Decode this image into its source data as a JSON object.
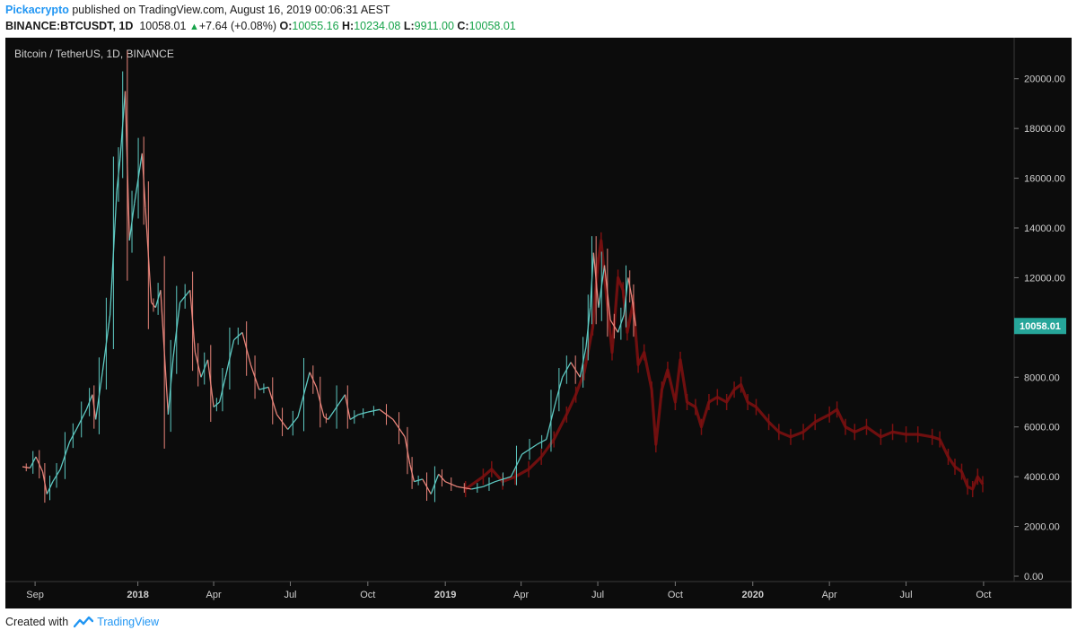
{
  "header": {
    "author": "Pickacrypto",
    "published_text": "published on TradingView.com, August 16, 2019 00:06:31 AEST"
  },
  "quote": {
    "symbol": "BINANCE:BTCUSDT, 1D",
    "last": "10058.01",
    "change": "+7.64 (+0.08%)",
    "open_label": "O:",
    "open": "10055.16",
    "high_label": "H:",
    "high": "10234.08",
    "low_label": "L:",
    "low": "9911.00",
    "close_label": "C:",
    "close": "10058.01",
    "direction": "up-arrow-icon"
  },
  "chart_title": "Bitcoin / TetherUS, 1D, BINANCE",
  "price_badge": "10058.01",
  "footer": {
    "created_with": "Created with",
    "brand": "TradingView",
    "icon": "tradingview-logo-icon"
  },
  "colors": {
    "background": "#0c0c0c",
    "up_candle": "#5ec9c2",
    "down_candle": "#e8847a",
    "projection": "#7a1010",
    "badge": "#26a69a",
    "author": "#2196f3",
    "change_up": "#17a34a"
  },
  "chart_data": {
    "type": "line",
    "title": "Bitcoin / TetherUS, 1D, BINANCE",
    "ylim": [
      0,
      21000
    ],
    "xlim": [
      "2017-08-01",
      "2020-11-01"
    ],
    "y_ticks": [
      "0.00",
      "2000.00",
      "4000.00",
      "6000.00",
      "8000.00",
      "10000.00",
      "12000.00",
      "14000.00",
      "16000.00",
      "18000.00",
      "20000.00"
    ],
    "x_ticks": [
      {
        "label": "Sep",
        "date": "2017-09-01"
      },
      {
        "label": "2018",
        "date": "2018-01-01"
      },
      {
        "label": "Apr",
        "date": "2018-04-01"
      },
      {
        "label": "Jul",
        "date": "2018-07-01"
      },
      {
        "label": "Oct",
        "date": "2018-10-01"
      },
      {
        "label": "2019",
        "date": "2019-01-01"
      },
      {
        "label": "Apr",
        "date": "2019-04-01"
      },
      {
        "label": "Jul",
        "date": "2019-07-01"
      },
      {
        "label": "Oct",
        "date": "2019-10-01"
      },
      {
        "label": "2020",
        "date": "2020-01-01"
      },
      {
        "label": "Apr",
        "date": "2020-04-01"
      },
      {
        "label": "Jul",
        "date": "2020-07-01"
      },
      {
        "label": "Oct",
        "date": "2020-10-01"
      }
    ],
    "series": [
      {
        "name": "BTCUSDT",
        "values": [
          [
            "2017-08-17",
            4400
          ],
          [
            "2017-08-26",
            4350
          ],
          [
            "2017-09-02",
            4800
          ],
          [
            "2017-09-10",
            4200
          ],
          [
            "2017-09-15",
            3300
          ],
          [
            "2017-09-22",
            3800
          ],
          [
            "2017-10-01",
            4300
          ],
          [
            "2017-10-12",
            5400
          ],
          [
            "2017-10-20",
            5900
          ],
          [
            "2017-11-01",
            6700
          ],
          [
            "2017-11-08",
            7300
          ],
          [
            "2017-11-12",
            6300
          ],
          [
            "2017-11-20",
            8200
          ],
          [
            "2017-11-29",
            10500
          ],
          [
            "2017-12-07",
            15500
          ],
          [
            "2017-12-11",
            16800
          ],
          [
            "2017-12-17",
            19500
          ],
          [
            "2017-12-22",
            13500
          ],
          [
            "2017-12-28",
            15000
          ],
          [
            "2018-01-06",
            17000
          ],
          [
            "2018-01-10",
            14800
          ],
          [
            "2018-01-17",
            11000
          ],
          [
            "2018-01-22",
            10800
          ],
          [
            "2018-01-28",
            11500
          ],
          [
            "2018-02-06",
            6500
          ],
          [
            "2018-02-12",
            8800
          ],
          [
            "2018-02-20",
            11000
          ],
          [
            "2018-03-04",
            11500
          ],
          [
            "2018-03-10",
            9000
          ],
          [
            "2018-03-17",
            8000
          ],
          [
            "2018-03-25",
            8700
          ],
          [
            "2018-04-01",
            6800
          ],
          [
            "2018-04-08",
            7000
          ],
          [
            "2018-04-15",
            8000
          ],
          [
            "2018-04-25",
            9500
          ],
          [
            "2018-05-05",
            9800
          ],
          [
            "2018-05-15",
            8500
          ],
          [
            "2018-05-25",
            7500
          ],
          [
            "2018-06-05",
            7600
          ],
          [
            "2018-06-15",
            6500
          ],
          [
            "2018-06-28",
            5900
          ],
          [
            "2018-07-10",
            6400
          ],
          [
            "2018-07-24",
            8200
          ],
          [
            "2018-08-01",
            7600
          ],
          [
            "2018-08-10",
            6400
          ],
          [
            "2018-08-15",
            6300
          ],
          [
            "2018-09-04",
            7300
          ],
          [
            "2018-09-10",
            6300
          ],
          [
            "2018-09-20",
            6500
          ],
          [
            "2018-10-01",
            6600
          ],
          [
            "2018-10-15",
            6700
          ],
          [
            "2018-10-31",
            6300
          ],
          [
            "2018-11-14",
            5600
          ],
          [
            "2018-11-20",
            4500
          ],
          [
            "2018-11-25",
            3800
          ],
          [
            "2018-12-05",
            3900
          ],
          [
            "2018-12-15",
            3300
          ],
          [
            "2018-12-24",
            4100
          ],
          [
            "2019-01-01",
            3800
          ],
          [
            "2019-01-15",
            3600
          ],
          [
            "2019-02-01",
            3500
          ],
          [
            "2019-02-15",
            3600
          ],
          [
            "2019-03-01",
            3800
          ],
          [
            "2019-03-20",
            4000
          ],
          [
            "2019-04-02",
            4900
          ],
          [
            "2019-04-20",
            5300
          ],
          [
            "2019-05-01",
            5500
          ],
          [
            "2019-05-12",
            7000
          ],
          [
            "2019-05-20",
            8000
          ],
          [
            "2019-05-30",
            8600
          ],
          [
            "2019-06-10",
            8000
          ],
          [
            "2019-06-17",
            9200
          ],
          [
            "2019-06-22",
            10800
          ],
          [
            "2019-06-26",
            13000
          ],
          [
            "2019-07-02",
            10800
          ],
          [
            "2019-07-09",
            12500
          ],
          [
            "2019-07-16",
            10300
          ],
          [
            "2019-07-25",
            9800
          ],
          [
            "2019-08-01",
            10500
          ],
          [
            "2019-08-06",
            12000
          ],
          [
            "2019-08-10",
            11300
          ],
          [
            "2019-08-15",
            10058
          ]
        ]
      },
      {
        "name": "projection",
        "values": [
          [
            "2019-01-25",
            3500
          ],
          [
            "2019-02-15",
            4000
          ],
          [
            "2019-02-25",
            4300
          ],
          [
            "2019-03-10",
            3800
          ],
          [
            "2019-03-25",
            4000
          ],
          [
            "2019-04-10",
            4300
          ],
          [
            "2019-04-25",
            4800
          ],
          [
            "2019-05-10",
            5500
          ],
          [
            "2019-05-25",
            6500
          ],
          [
            "2019-06-05",
            7300
          ],
          [
            "2019-06-15",
            8200
          ],
          [
            "2019-06-25",
            10000
          ],
          [
            "2019-07-01",
            12500
          ],
          [
            "2019-07-05",
            13500
          ],
          [
            "2019-07-12",
            11000
          ],
          [
            "2019-07-18",
            9000
          ],
          [
            "2019-07-25",
            12000
          ],
          [
            "2019-07-31",
            11500
          ],
          [
            "2019-08-05",
            9800
          ],
          [
            "2019-08-12",
            11000
          ],
          [
            "2019-08-18",
            8500
          ],
          [
            "2019-08-25",
            9000
          ],
          [
            "2019-09-03",
            7500
          ],
          [
            "2019-09-08",
            5300
          ],
          [
            "2019-09-15",
            7500
          ],
          [
            "2019-09-22",
            8300
          ],
          [
            "2019-10-01",
            7000
          ],
          [
            "2019-10-07",
            8700
          ],
          [
            "2019-10-15",
            7000
          ],
          [
            "2019-10-25",
            6800
          ],
          [
            "2019-11-01",
            6000
          ],
          [
            "2019-11-10",
            7000
          ],
          [
            "2019-11-20",
            7200
          ],
          [
            "2019-12-01",
            7000
          ],
          [
            "2019-12-10",
            7500
          ],
          [
            "2019-12-18",
            7700
          ],
          [
            "2019-12-26",
            7000
          ],
          [
            "2020-01-05",
            6800
          ],
          [
            "2020-01-20",
            6200
          ],
          [
            "2020-02-01",
            5800
          ],
          [
            "2020-02-15",
            5600
          ],
          [
            "2020-03-01",
            5800
          ],
          [
            "2020-03-15",
            6200
          ],
          [
            "2020-04-01",
            6500
          ],
          [
            "2020-04-10",
            6700
          ],
          [
            "2020-04-20",
            6000
          ],
          [
            "2020-05-01",
            5800
          ],
          [
            "2020-05-15",
            6000
          ],
          [
            "2020-06-01",
            5600
          ],
          [
            "2020-06-15",
            5800
          ],
          [
            "2020-07-01",
            5700
          ],
          [
            "2020-07-15",
            5700
          ],
          [
            "2020-08-01",
            5600
          ],
          [
            "2020-08-10",
            5500
          ],
          [
            "2020-08-20",
            4800
          ],
          [
            "2020-08-28",
            4400
          ],
          [
            "2020-09-05",
            4200
          ],
          [
            "2020-09-12",
            3600
          ],
          [
            "2020-09-18",
            3500
          ],
          [
            "2020-09-24",
            4000
          ],
          [
            "2020-09-30",
            3700
          ]
        ]
      }
    ]
  }
}
